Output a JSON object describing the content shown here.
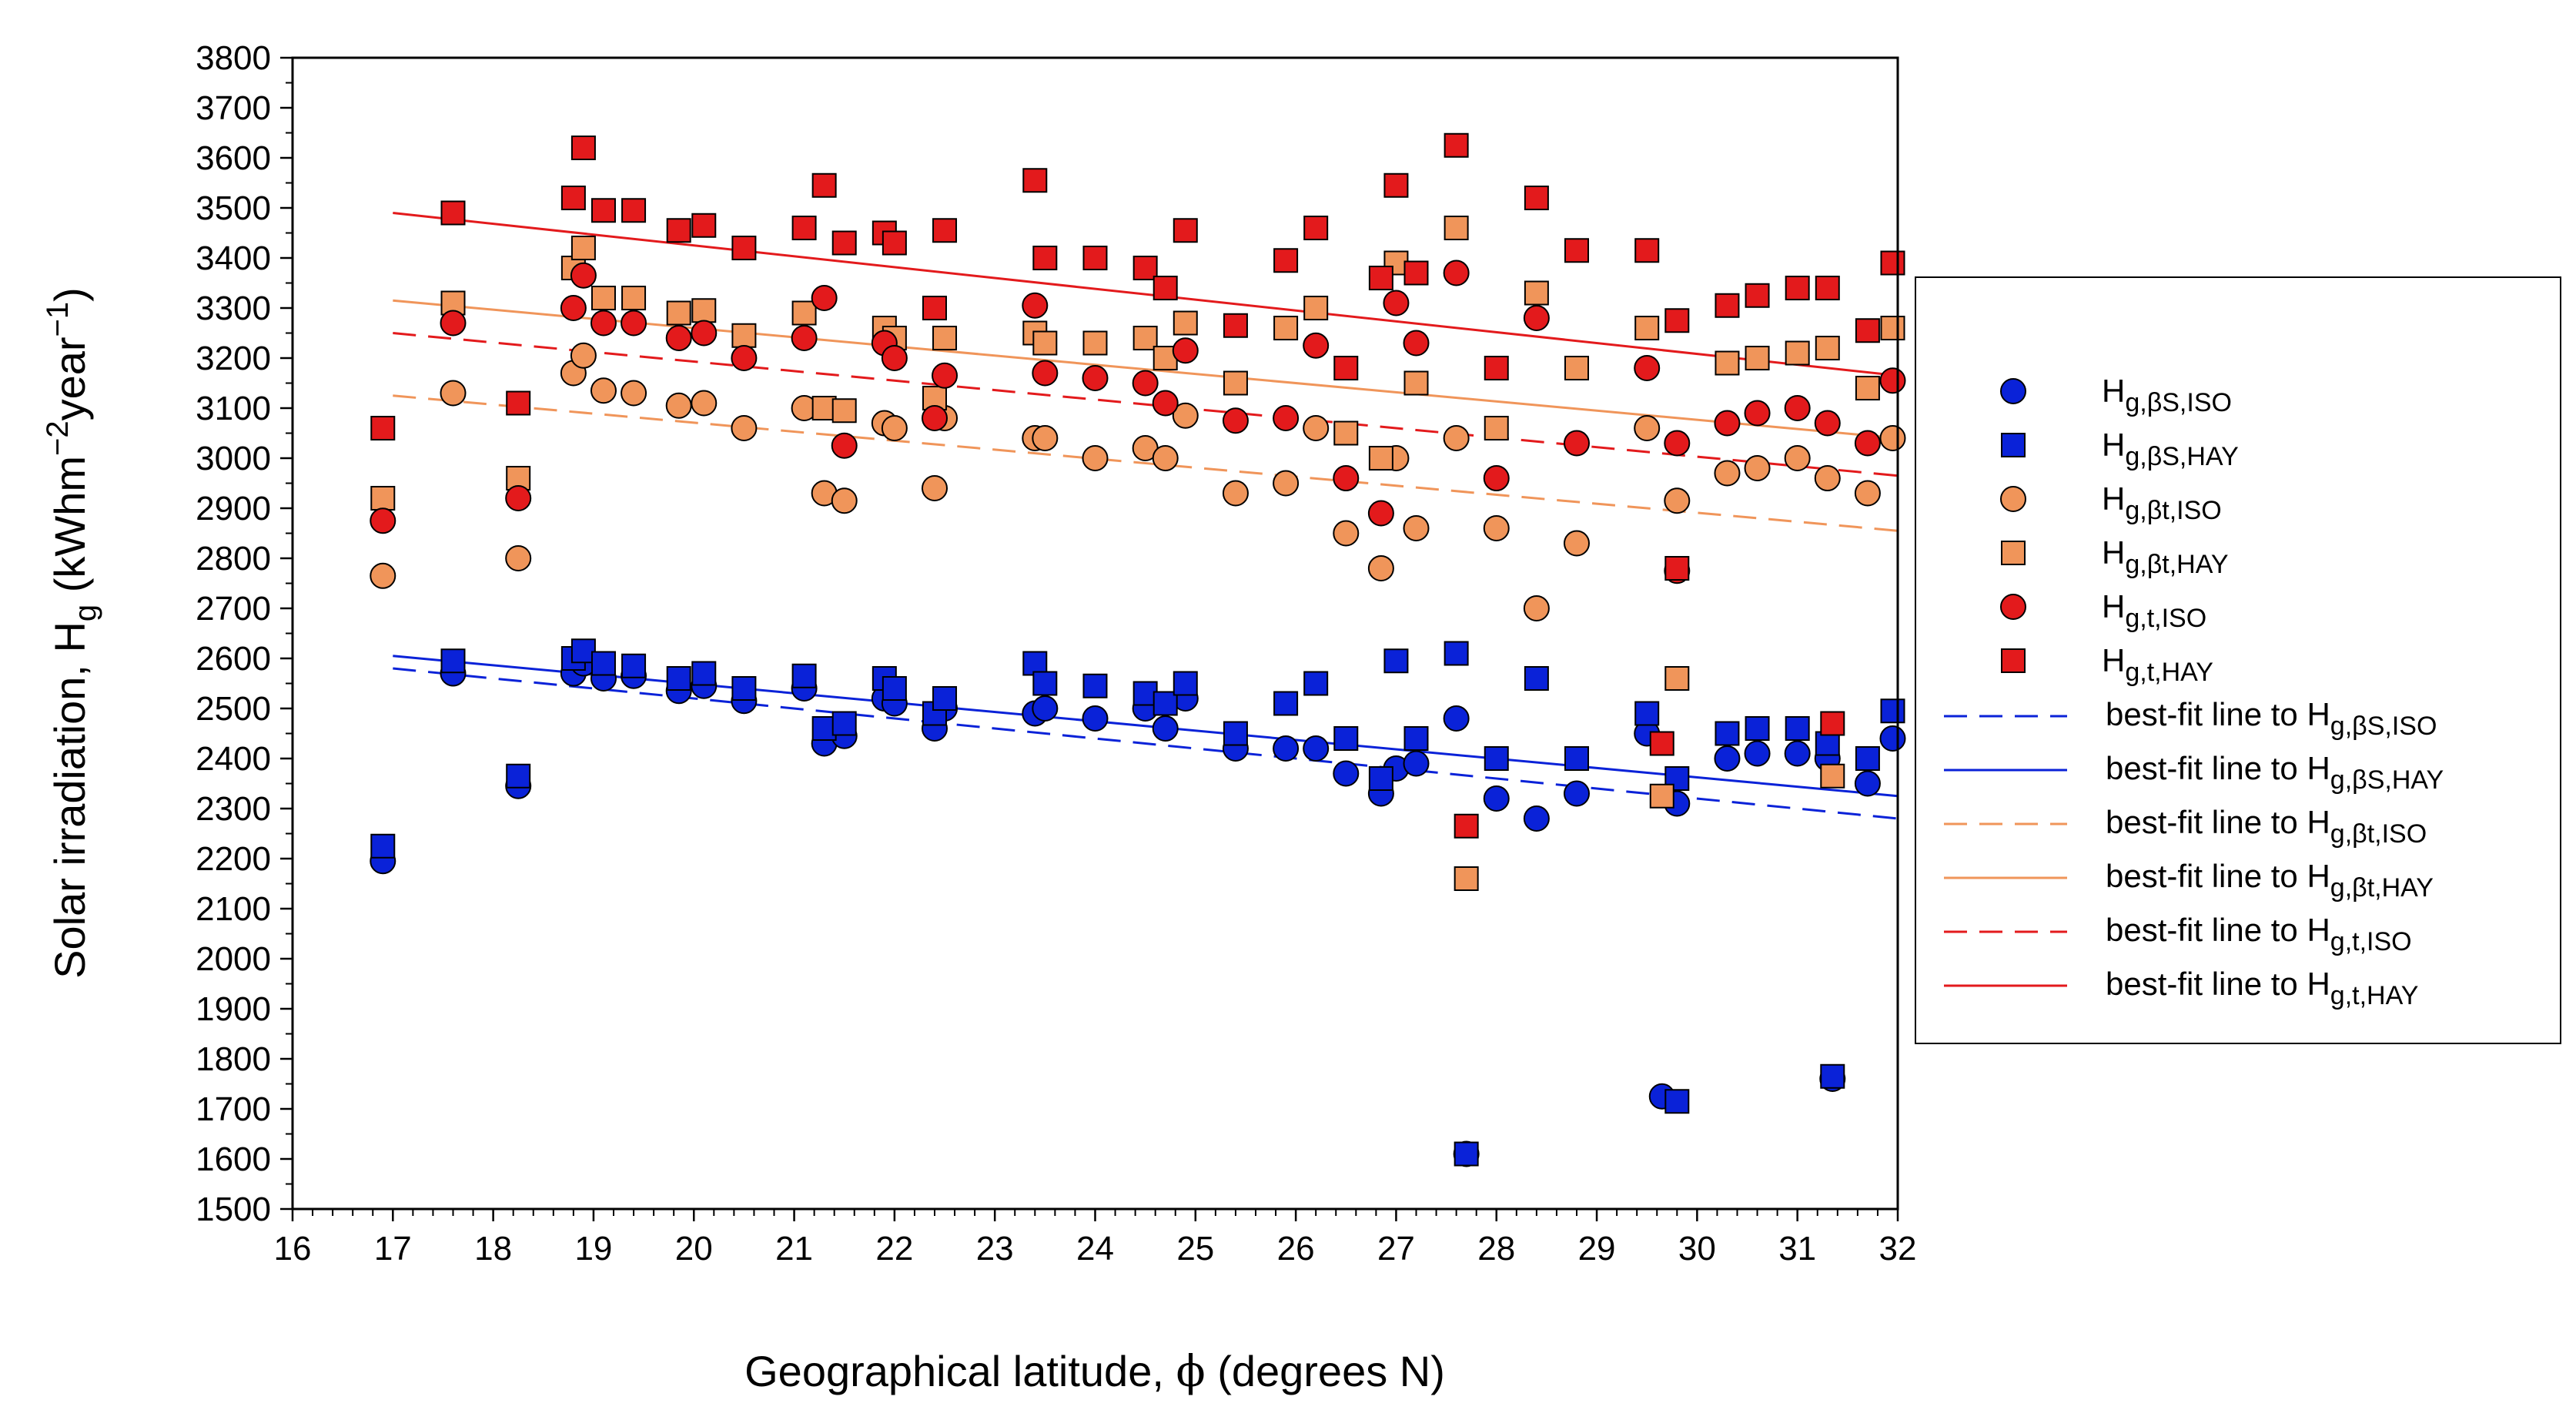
{
  "chart_data": {
    "type": "scatter",
    "title": "",
    "xlabel": {
      "prefix": "Geographical latitude, ",
      "symbol": "ϕ",
      "suffix": " (degrees N)"
    },
    "ylabel": {
      "prefix": "Solar irradiation, H",
      "sub": "g",
      "unit_prefix": " (kWhm",
      "exp1": "−2",
      "unit_mid": "year",
      "exp2": "−1",
      "unit_suffix": ")"
    },
    "xlim": [
      16,
      32
    ],
    "ylim": [
      1500,
      3800
    ],
    "x_ticks": [
      16,
      17,
      18,
      19,
      20,
      21,
      22,
      23,
      24,
      25,
      26,
      27,
      28,
      29,
      30,
      31,
      32
    ],
    "y_ticks": [
      1500,
      1600,
      1700,
      1800,
      1900,
      2000,
      2100,
      2200,
      2300,
      2400,
      2500,
      2600,
      2700,
      2800,
      2900,
      3000,
      3100,
      3200,
      3300,
      3400,
      3500,
      3600,
      3700,
      3800
    ],
    "legend_position": "right",
    "x": [
      16.9,
      17.6,
      18.25,
      18.8,
      18.9,
      19.1,
      19.4,
      19.85,
      20.1,
      20.5,
      21.1,
      21.3,
      21.5,
      21.9,
      22.0,
      22.4,
      22.5,
      23.4,
      23.5,
      24.0,
      24.5,
      24.7,
      24.9,
      25.4,
      25.9,
      26.2,
      26.5,
      26.85,
      27.0,
      27.2,
      27.6,
      28.0,
      28.4,
      28.8,
      29.5,
      29.8,
      30.3,
      30.6,
      31.0,
      31.3,
      31.7,
      31.95
    ],
    "series": [
      {
        "name": "H_g,βS,ISO",
        "label_main": "H",
        "label_sub": "g,βS,ISO",
        "marker": "circle",
        "color": "#0a22d8",
        "values": [
          2195,
          2570,
          2345,
          2570,
          2590,
          2560,
          2565,
          2535,
          2545,
          2515,
          2540,
          2430,
          2445,
          2520,
          2510,
          2460,
          2500,
          2490,
          2500,
          2480,
          2500,
          2460,
          2520,
          2420,
          2420,
          2420,
          2370,
          2330,
          2380,
          2390,
          2480,
          2320,
          2280,
          2330,
          2450,
          2310,
          2400,
          2410,
          2410,
          2400,
          2350,
          2440
        ]
      },
      {
        "name": "H_g,βS,HAY",
        "label_main": "H",
        "label_sub": "g,βS,HAY",
        "marker": "square",
        "color": "#0a22d8",
        "values": [
          2225,
          2595,
          2365,
          2600,
          2615,
          2590,
          2585,
          2560,
          2570,
          2540,
          2565,
          2460,
          2470,
          2560,
          2540,
          2490,
          2520,
          2590,
          2550,
          2545,
          2530,
          2510,
          2550,
          2450,
          2510,
          2550,
          2440,
          2360,
          2595,
          2440,
          2610,
          2400,
          2560,
          2400,
          2490,
          2360,
          2450,
          2460,
          2460,
          2430,
          2400,
          2495
        ]
      },
      {
        "name": "H_g,βt,ISO",
        "label_main": "H",
        "label_sub": "g,βt,ISO",
        "marker": "circle",
        "color": "#f0955a",
        "values": [
          2765,
          3130,
          2800,
          3170,
          3205,
          3135,
          3130,
          3105,
          3110,
          3060,
          3100,
          2930,
          2915,
          3070,
          3060,
          2940,
          3080,
          3040,
          3040,
          3000,
          3020,
          3000,
          3085,
          2930,
          2950,
          3060,
          2850,
          2780,
          3000,
          2860,
          3040,
          2860,
          2700,
          2830,
          3060,
          2915,
          2970,
          2980,
          3000,
          2960,
          2930,
          3040
        ]
      },
      {
        "name": "H_g,βt,HAY",
        "label_main": "H",
        "label_sub": "g,βt,HAY",
        "marker": "square",
        "color": "#f0955a",
        "values": [
          2920,
          3310,
          2960,
          3380,
          3420,
          3320,
          3320,
          3290,
          3295,
          3245,
          3290,
          3100,
          3095,
          3260,
          3240,
          3120,
          3240,
          3250,
          3230,
          3230,
          3240,
          3200,
          3270,
          3150,
          3260,
          3300,
          3050,
          3000,
          3390,
          3150,
          3460,
          3060,
          3330,
          3180,
          3260,
          2560,
          3190,
          3200,
          3210,
          3220,
          3140,
          3260
        ]
      },
      {
        "name": "H_g,t,ISO",
        "label_main": "H",
        "label_sub": "g,t,ISO",
        "marker": "circle",
        "color": "#e31a1c",
        "values": [
          2875,
          3270,
          2920,
          3300,
          3365,
          3270,
          3270,
          3240,
          3250,
          3200,
          3240,
          3320,
          3025,
          3230,
          3200,
          3080,
          3165,
          3305,
          3170,
          3160,
          3150,
          3110,
          3215,
          3075,
          3080,
          3225,
          2960,
          2890,
          3310,
          3230,
          3370,
          2960,
          3280,
          3030,
          3180,
          3030,
          3070,
          3090,
          3100,
          3070,
          3030,
          3155
        ]
      },
      {
        "name": "H_g,t,HAY",
        "label_main": "H",
        "label_sub": "g,t,HAY",
        "marker": "square",
        "color": "#e31a1c",
        "values": [
          3060,
          3490,
          3110,
          3520,
          3620,
          3495,
          3495,
          3455,
          3465,
          3420,
          3460,
          3545,
          3430,
          3450,
          3430,
          3300,
          3455,
          3555,
          3400,
          3400,
          3380,
          3340,
          3455,
          3265,
          3395,
          3460,
          3180,
          3360,
          3545,
          3370,
          3625,
          3180,
          3520,
          3415,
          3415,
          3275,
          3305,
          3325,
          3340,
          3340,
          3255,
          3390
        ]
      }
    ],
    "extra_points": [
      {
        "x": 27.7,
        "y": 1610,
        "marker": "circle",
        "color": "#0a22d8"
      },
      {
        "x": 27.7,
        "y": 1610,
        "marker": "square",
        "color": "#0a22d8"
      },
      {
        "x": 29.65,
        "y": 1725,
        "marker": "circle",
        "color": "#0a22d8"
      },
      {
        "x": 29.8,
        "y": 1715,
        "marker": "square",
        "color": "#0a22d8"
      },
      {
        "x": 31.35,
        "y": 1760,
        "marker": "circle",
        "color": "#0a22d8"
      },
      {
        "x": 31.35,
        "y": 1765,
        "marker": "square",
        "color": "#0a22d8"
      },
      {
        "x": 27.7,
        "y": 2160,
        "marker": "square",
        "color": "#f0955a"
      },
      {
        "x": 27.7,
        "y": 2265,
        "marker": "square",
        "color": "#e31a1c"
      },
      {
        "x": 29.65,
        "y": 2325,
        "marker": "square",
        "color": "#f0955a"
      },
      {
        "x": 29.65,
        "y": 2430,
        "marker": "square",
        "color": "#e31a1c"
      },
      {
        "x": 31.35,
        "y": 2365,
        "marker": "square",
        "color": "#f0955a"
      },
      {
        "x": 31.35,
        "y": 2470,
        "marker": "square",
        "color": "#e31a1c"
      },
      {
        "x": 29.8,
        "y": 2775,
        "marker": "circle",
        "color": "#e31a1c"
      },
      {
        "x": 29.8,
        "y": 2780,
        "marker": "square",
        "color": "#e31a1c"
      }
    ],
    "fit_lines": [
      {
        "name": "best-fit line to H_g,βS,ISO",
        "label_prefix": "best-fit line to H",
        "label_sub": "g,βS,ISO",
        "color": "#0a22d8",
        "dash": true,
        "x": [
          17,
          32
        ],
        "y": [
          2580,
          2280
        ]
      },
      {
        "name": "best-fit line to H_g,βS,HAY",
        "label_prefix": "best-fit line to H",
        "label_sub": "g,βS,HAY",
        "color": "#0a22d8",
        "dash": false,
        "x": [
          17,
          32
        ],
        "y": [
          2605,
          2325
        ]
      },
      {
        "name": "best-fit line to H_g,βt,ISO",
        "label_prefix": "best-fit line to H",
        "label_sub": "g,βt,ISO",
        "color": "#f0955a",
        "dash": true,
        "x": [
          17,
          32
        ],
        "y": [
          3125,
          2855
        ]
      },
      {
        "name": "best-fit line to H_g,βt,HAY",
        "label_prefix": "best-fit line to H",
        "label_sub": "g,βt,HAY",
        "color": "#f0955a",
        "dash": false,
        "x": [
          17,
          32
        ],
        "y": [
          3315,
          3040
        ]
      },
      {
        "name": "best-fit line to H_g,t,ISO",
        "label_prefix": "best-fit line to H",
        "label_sub": "g,t,ISO",
        "color": "#e31a1c",
        "dash": true,
        "x": [
          17,
          32
        ],
        "y": [
          3250,
          2965
        ]
      },
      {
        "name": "best-fit line to H_g,t,HAY",
        "label_prefix": "best-fit line to H",
        "label_sub": "g,t,HAY",
        "color": "#e31a1c",
        "dash": false,
        "x": [
          17,
          32
        ],
        "y": [
          3490,
          3165
        ]
      }
    ]
  }
}
